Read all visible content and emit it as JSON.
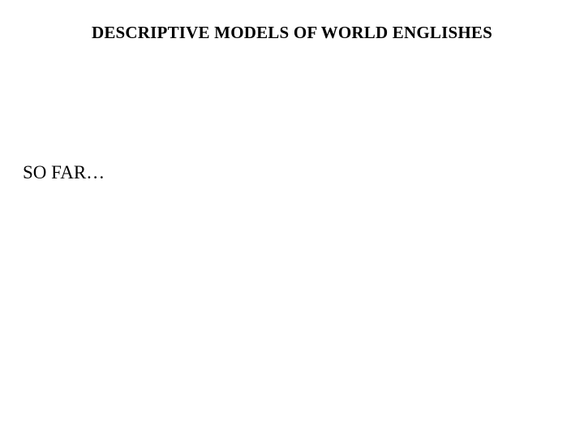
{
  "slide": {
    "title": "DESCRIPTIVE MODELS OF WORLD ENGLISHES",
    "subheading": "SO FAR…",
    "background_color": "#ffffff",
    "text_color": "#000000",
    "title_fontsize": 21,
    "title_weight": "bold",
    "subheading_fontsize": 23,
    "subheading_weight": "normal",
    "font_family": "Times New Roman"
  }
}
